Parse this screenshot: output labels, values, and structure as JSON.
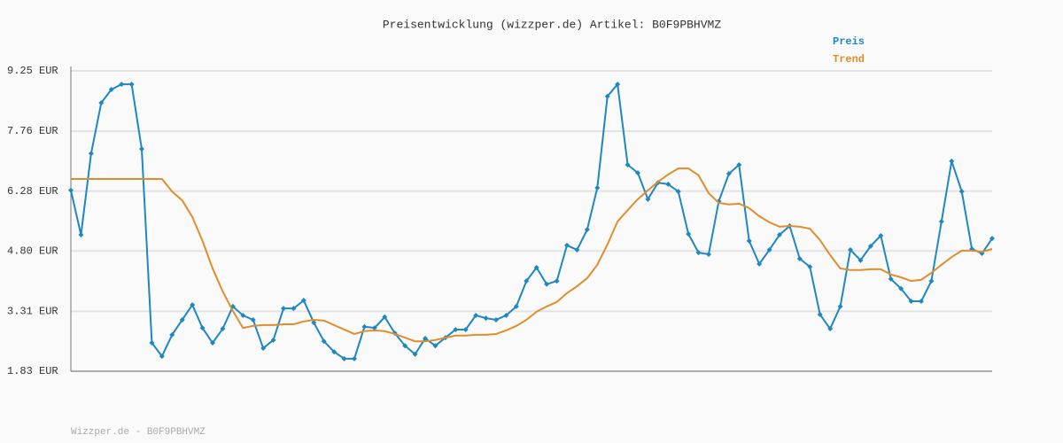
{
  "chart_data": {
    "type": "line",
    "title": "Preisentwicklung (wizzper.de) Artikel: B0F9PBHVMZ",
    "footer": "Wizzper.de - B0F9PBHVMZ",
    "legend": "top-right",
    "grid": true,
    "ylim": [
      1.83,
      9.25
    ],
    "yticks": [
      {
        "value": 1.83,
        "label": "1.83 EUR"
      },
      {
        "value": 3.31,
        "label": "3.31 EUR"
      },
      {
        "value": 4.8,
        "label": "4.80 EUR"
      },
      {
        "value": 6.28,
        "label": "6.28 EUR"
      },
      {
        "value": 7.76,
        "label": "7.76 EUR"
      },
      {
        "value": 9.25,
        "label": "9.25 EUR"
      }
    ],
    "series": [
      {
        "name": "Preis",
        "color": "#1f87c2",
        "markers": true,
        "values": [
          6.3,
          5.2,
          7.21,
          8.46,
          8.79,
          8.92,
          8.92,
          7.32,
          2.53,
          2.2,
          2.73,
          3.1,
          3.47,
          2.9,
          2.53,
          2.88,
          3.43,
          3.21,
          3.1,
          2.4,
          2.6,
          3.38,
          3.38,
          3.58,
          3.03,
          2.57,
          2.31,
          2.14,
          2.14,
          2.93,
          2.9,
          3.17,
          2.77,
          2.46,
          2.25,
          2.64,
          2.46,
          2.66,
          2.86,
          2.86,
          3.21,
          3.14,
          3.1,
          3.21,
          3.43,
          4.06,
          4.39,
          3.98,
          4.06,
          4.94,
          4.83,
          5.33,
          6.36,
          8.62,
          8.92,
          6.93,
          6.73,
          6.08,
          6.49,
          6.45,
          6.27,
          5.22,
          4.76,
          4.72,
          6.03,
          6.71,
          6.93,
          5.05,
          4.48,
          4.83,
          5.2,
          5.42,
          4.61,
          4.41,
          3.23,
          2.88,
          3.43,
          4.83,
          4.57,
          4.92,
          5.18,
          4.11,
          3.87,
          3.56,
          3.56,
          4.06,
          5.53,
          7.02,
          6.27,
          4.85,
          4.74,
          5.11
        ]
      },
      {
        "name": "Trend",
        "color": "#e08e2b",
        "markers": false,
        "values": [
          6.58,
          6.58,
          6.58,
          6.58,
          6.58,
          6.58,
          6.58,
          6.58,
          6.58,
          6.58,
          6.27,
          6.05,
          5.64,
          5.05,
          4.37,
          3.8,
          3.32,
          2.9,
          2.95,
          2.97,
          2.97,
          2.99,
          2.99,
          3.06,
          3.1,
          3.08,
          2.97,
          2.86,
          2.75,
          2.82,
          2.84,
          2.82,
          2.75,
          2.66,
          2.57,
          2.57,
          2.6,
          2.66,
          2.71,
          2.71,
          2.73,
          2.73,
          2.75,
          2.84,
          2.95,
          3.1,
          3.3,
          3.43,
          3.54,
          3.76,
          3.93,
          4.13,
          4.46,
          4.96,
          5.53,
          5.81,
          6.08,
          6.3,
          6.51,
          6.69,
          6.84,
          6.84,
          6.67,
          6.23,
          5.99,
          5.95,
          5.97,
          5.86,
          5.66,
          5.51,
          5.4,
          5.42,
          5.4,
          5.35,
          5.07,
          4.7,
          4.37,
          4.33,
          4.33,
          4.35,
          4.35,
          4.22,
          4.15,
          4.06,
          4.09,
          4.26,
          4.46,
          4.65,
          4.81,
          4.81,
          4.78,
          4.85
        ]
      }
    ]
  }
}
